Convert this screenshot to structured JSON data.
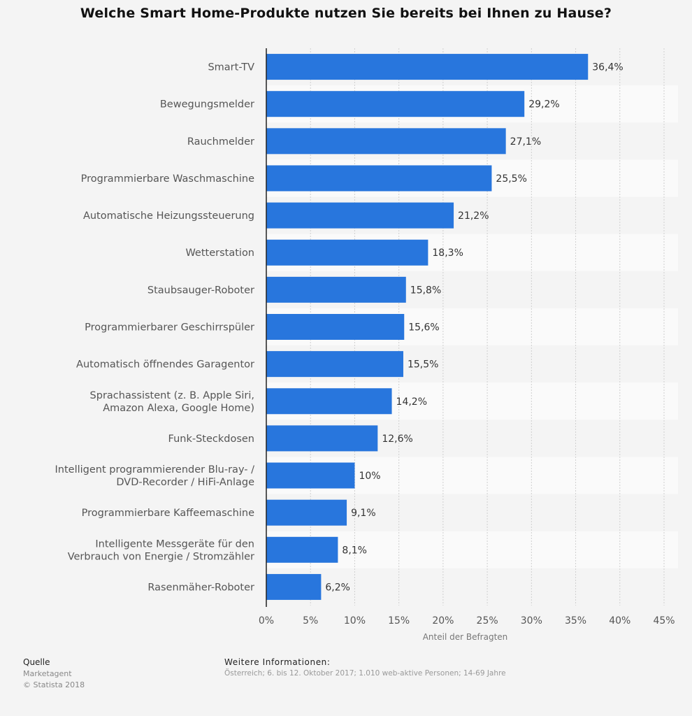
{
  "chart_data": {
    "type": "bar",
    "orientation": "horizontal",
    "title": "Welche Smart Home-Produkte nutzen Sie bereits bei Ihnen zu Hause?",
    "xlabel": "Anteil der Befragten",
    "ylabel": "",
    "xlim": [
      0,
      45
    ],
    "tick_labels": [
      "0%",
      "5%",
      "10%",
      "15%",
      "20%",
      "25%",
      "30%",
      "35%",
      "40%",
      "45%"
    ],
    "categories": [
      [
        "Smart-TV"
      ],
      [
        "Bewegungsmelder"
      ],
      [
        "Rauchmelder"
      ],
      [
        "Programmierbare Waschmaschine"
      ],
      [
        "Automatische Heizungssteuerung"
      ],
      [
        "Wetterstation"
      ],
      [
        "Staubsauger-Roboter"
      ],
      [
        "Programmierbarer Geschirrspüler"
      ],
      [
        "Automatisch öffnendes Garagentor"
      ],
      [
        "Sprachassistent (z. B. Apple Siri,",
        "Amazon Alexa, Google Home)"
      ],
      [
        "Funk-Steckdosen"
      ],
      [
        "Intelligent programmierender Blu-ray- /",
        "DVD-Recorder / HiFi-Anlage"
      ],
      [
        "Programmierbare Kaffeemaschine"
      ],
      [
        "Intelligente Messgeräte für den",
        "Verbrauch von Energie / Stromzähler"
      ],
      [
        "Rasenmäher-Roboter"
      ]
    ],
    "values": [
      36.4,
      29.2,
      27.1,
      25.5,
      21.2,
      18.3,
      15.8,
      15.6,
      15.5,
      14.2,
      12.6,
      10,
      9.1,
      8.1,
      6.2
    ],
    "value_labels": [
      "36,4%",
      "29,2%",
      "27,1%",
      "25,5%",
      "21,2%",
      "18,3%",
      "15,8%",
      "15,6%",
      "15,5%",
      "14,2%",
      "12,6%",
      "10%",
      "9,1%",
      "8,1%",
      "6,2%"
    ],
    "bar_color": "#2876dd",
    "grid": true
  },
  "footer": {
    "source_title": "Quelle",
    "source_name": "Marketagent",
    "copyright": "© Statista 2018",
    "info_title": "Weitere Informationen:",
    "info_text": "Österreich; 6. bis 12. Oktober 2017; 1.010 web-aktive Personen; 14-69 Jahre"
  }
}
